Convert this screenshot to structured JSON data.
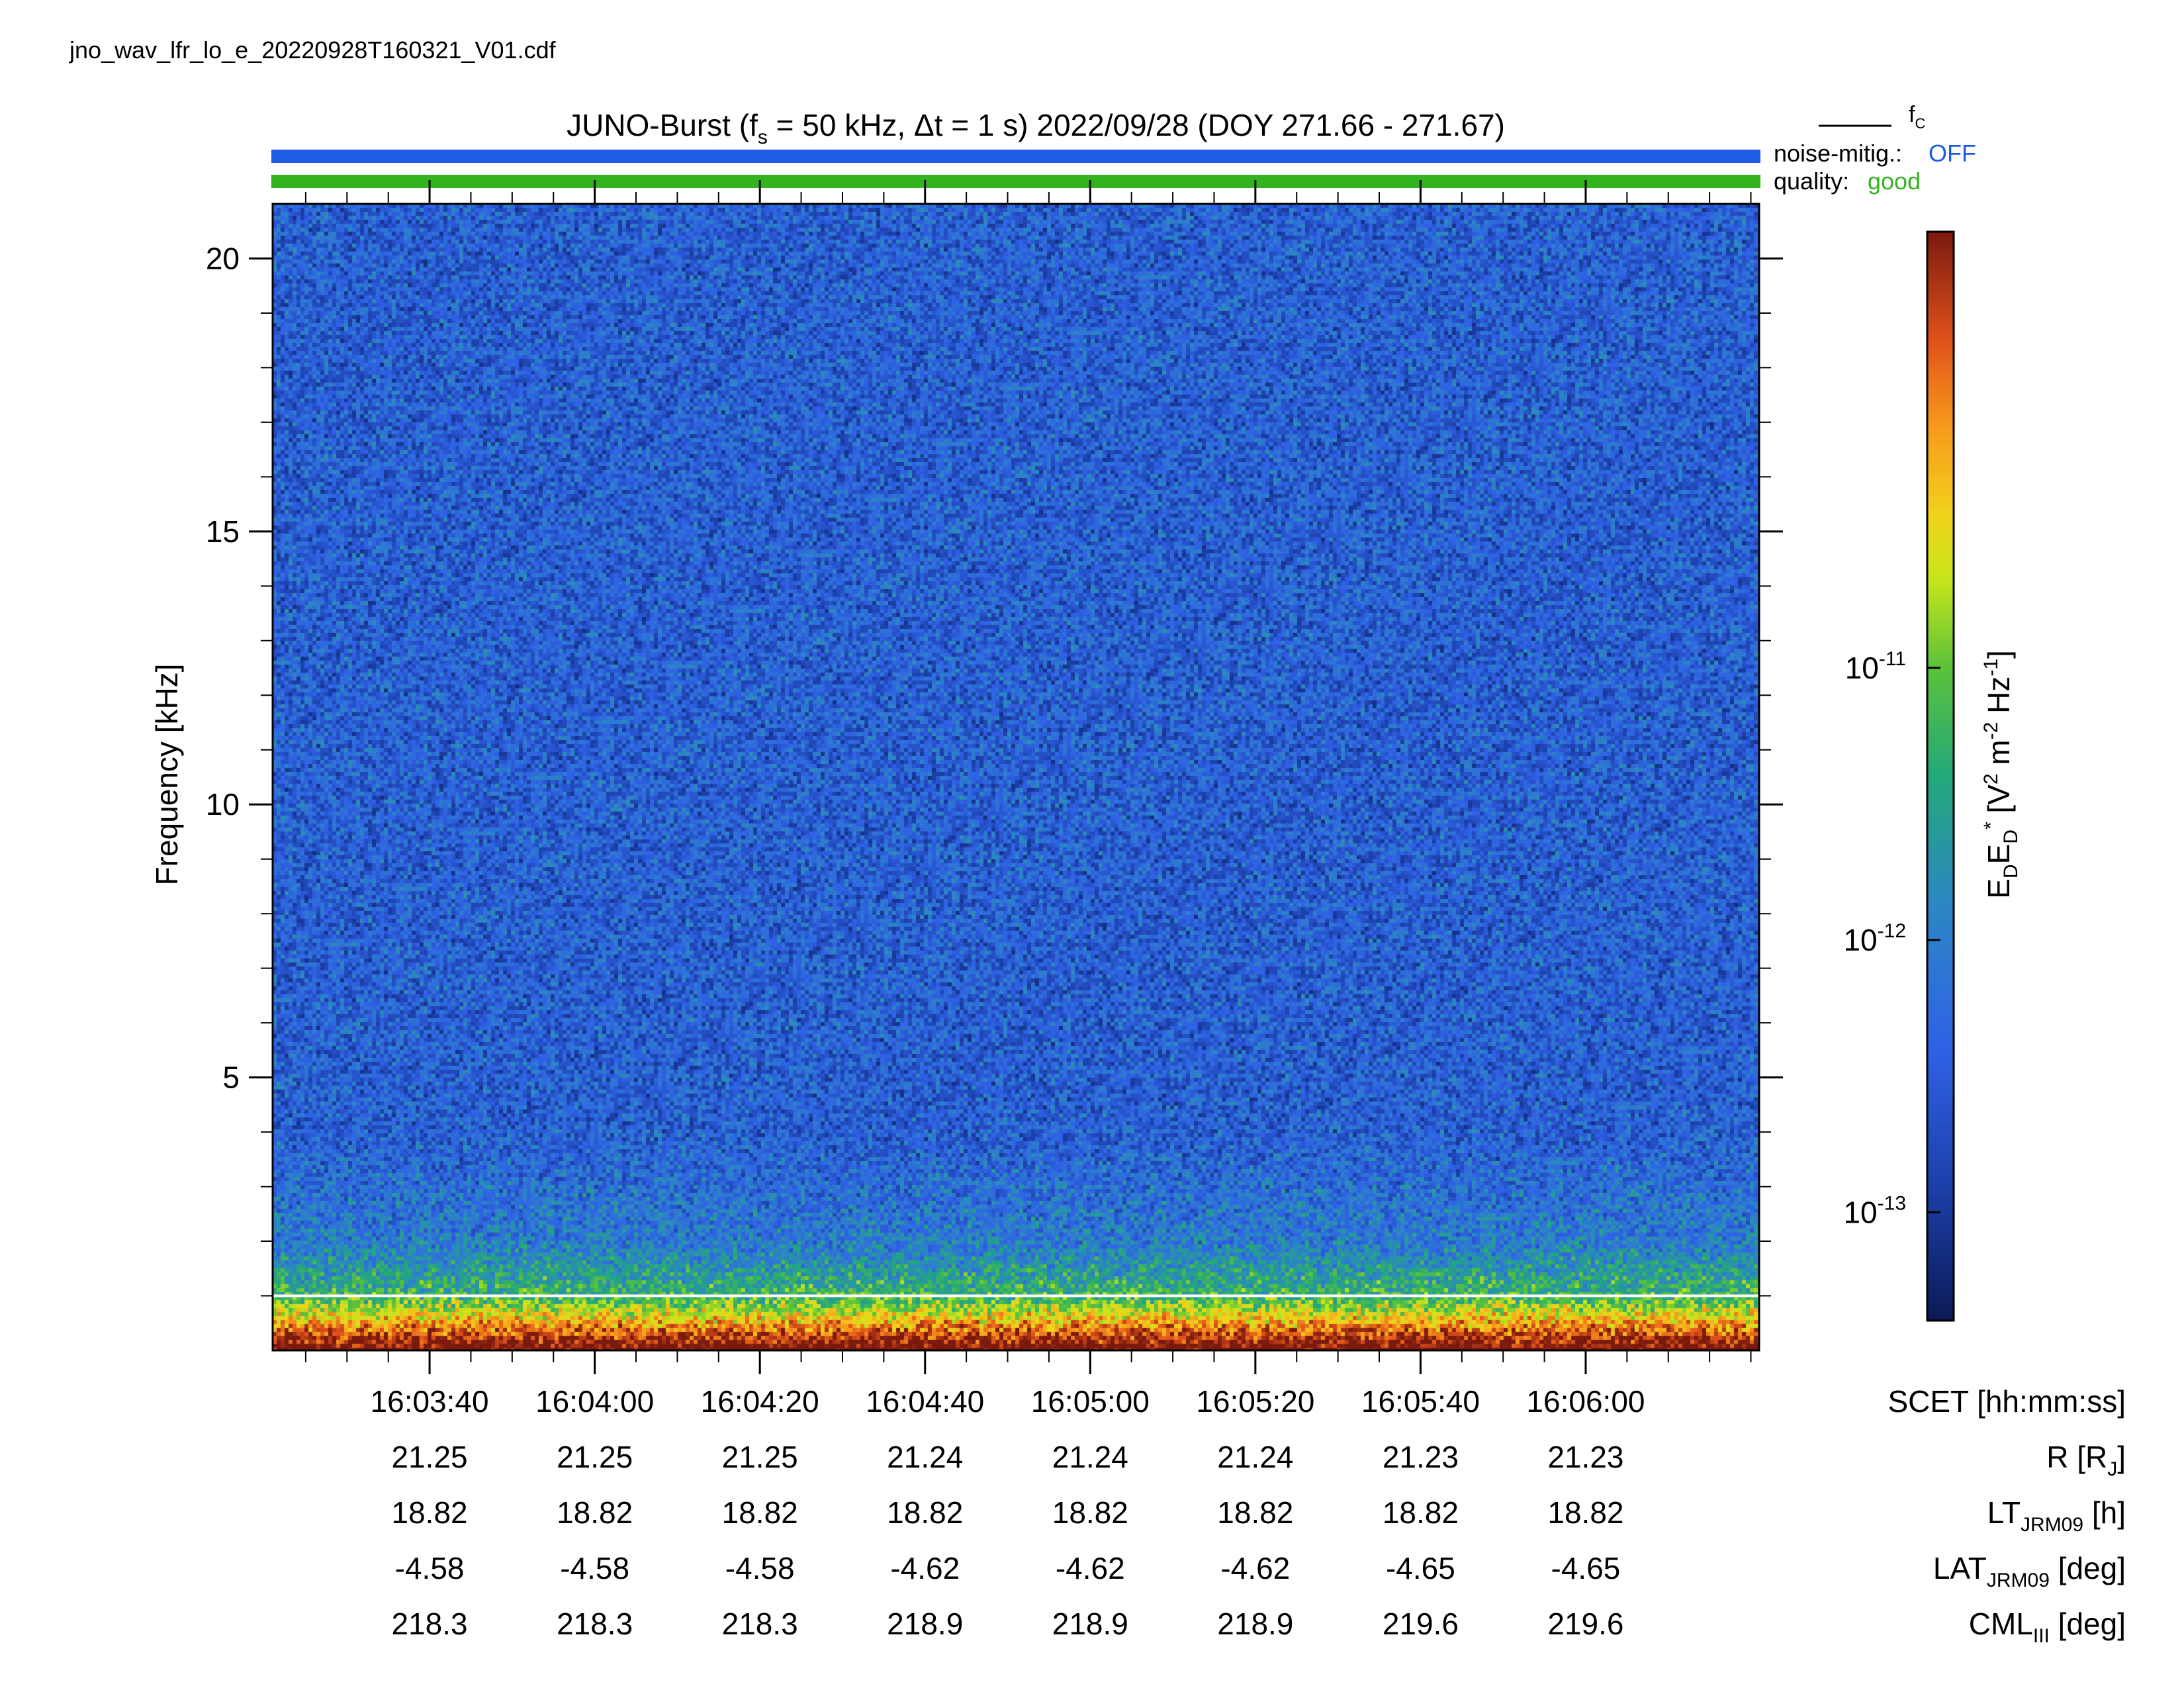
{
  "filename": "jno_wav_lfr_lo_e_20220928T160321_V01.cdf",
  "title": {
    "prefix": "JUNO-Burst (f",
    "sub_s": "s",
    "middle": " = 50 kHz, Δt = 1 s)  2022/09/28 (DOY 271.66 - 271.67)"
  },
  "legend": {
    "fc_main": "f",
    "fc_sub": "C",
    "noise_label": "noise-mitig.:",
    "noise_value": "OFF",
    "noise_color": "#1f5ce6",
    "quality_label": "quality:",
    "quality_value": "good",
    "quality_color": "#33b41e"
  },
  "colors": {
    "noise_bar": "#1f5ce6",
    "quality_bar": "#33b41e",
    "fc_line": "#ffffff"
  },
  "chart_data": {
    "type": "heatmap",
    "description_axis": "time-frequency spectrogram",
    "ylabel": "Frequency [kHz]",
    "ylim": [
      0,
      21
    ],
    "y_ticks": [
      5,
      10,
      15,
      20
    ],
    "y_tick_labels": [
      "5",
      "10",
      "15",
      "20"
    ],
    "y_minor_step": 1,
    "x_start": "16:03:21",
    "x_end": "16:06:21",
    "x_ticks": [
      "16:03:40",
      "16:04:00",
      "16:04:20",
      "16:04:40",
      "16:05:00",
      "16:05:20",
      "16:05:40",
      "16:06:00"
    ],
    "x_minor_step_seconds": 5,
    "fc_line_khz": 1.0,
    "colorbar": {
      "scale": "log",
      "range": [
        4e-14,
        4e-10
      ],
      "ticks": [
        {
          "value": 1e-13,
          "base": "10",
          "exp": "-13"
        },
        {
          "value": 1e-12,
          "base": "10",
          "exp": "-12"
        },
        {
          "value": 1e-11,
          "base": "10",
          "exp": "-11"
        }
      ],
      "label_parts": [
        "E",
        "D",
        "E",
        "D",
        "*",
        " [V",
        "2",
        " m",
        "-2",
        " Hz",
        "-1",
        "]"
      ]
    },
    "intensity_profile": {
      "description": "background ~1e-13 across band, enhanced (green-yellow) below ~3 kHz, red-orange below ~1 kHz"
    }
  },
  "ephemeris": {
    "rows": [
      {
        "label_main": "R [R",
        "label_sub": "J",
        "label_tail": "]",
        "values": [
          "21.25",
          "21.25",
          "21.25",
          "21.24",
          "21.24",
          "21.24",
          "21.23",
          "21.23"
        ]
      },
      {
        "label_main": "LT",
        "label_sub": "JRM09",
        "label_tail": " [h]",
        "values": [
          "18.82",
          "18.82",
          "18.82",
          "18.82",
          "18.82",
          "18.82",
          "18.82",
          "18.82"
        ]
      },
      {
        "label_main": "LAT",
        "label_sub": "JRM09",
        "label_tail": " [deg]",
        "values": [
          "-4.58",
          "-4.58",
          "-4.58",
          "-4.62",
          "-4.62",
          "-4.62",
          "-4.65",
          "-4.65"
        ]
      },
      {
        "label_main": "CML",
        "label_sub": "III",
        "label_tail": " [deg]",
        "values": [
          "218.3",
          "218.3",
          "218.3",
          "218.9",
          "218.9",
          "218.9",
          "219.6",
          "219.6"
        ]
      }
    ],
    "time_label": "SCET [hh:mm:ss]"
  }
}
